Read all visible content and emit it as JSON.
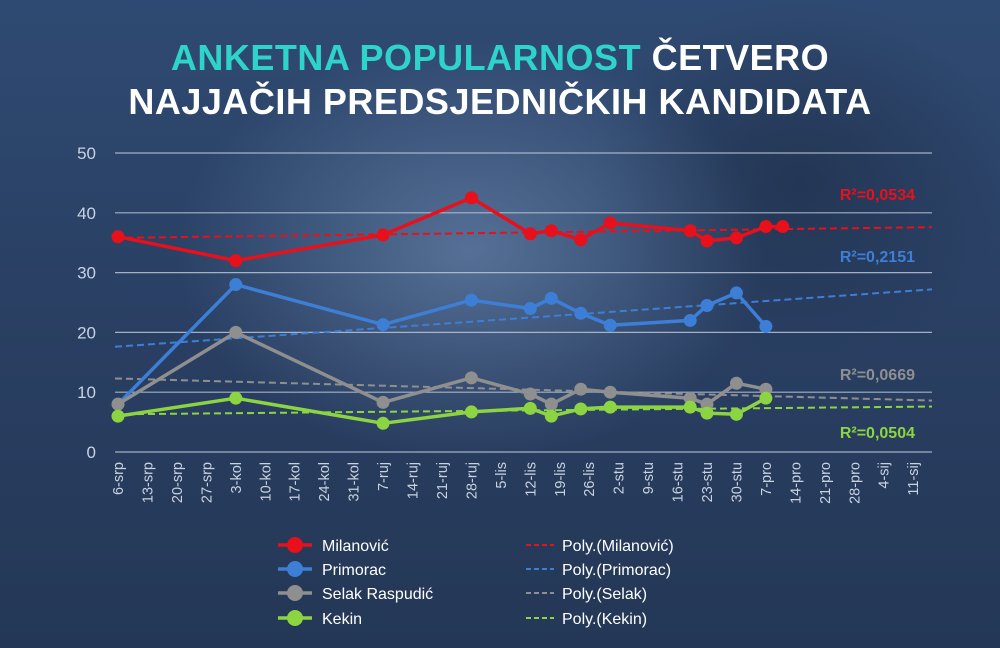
{
  "title": {
    "part1": "ANKETNA POPULARNOST",
    "part2": " ČETVERO",
    "line2": "NAJJAČIH PREDSJEDNIČKIH KANDIDATA"
  },
  "colors": {
    "accent": "#2ed3c9",
    "milanovic": "#e8101a",
    "primorac": "#3d7fd6",
    "selak": "#8f8f8f",
    "kekin": "#8cd442"
  },
  "chart_data": {
    "type": "line",
    "categories": [
      "6-srp",
      "13-srp",
      "20-srp",
      "27-srp",
      "3-kol",
      "10-kol",
      "17-kol",
      "24-kol",
      "31-kol",
      "7-ruj",
      "14-ruj",
      "21-ruj",
      "28-ruj",
      "5-lis",
      "12-lis",
      "19-lis",
      "26-lis",
      "2-stu",
      "9-stu",
      "16-stu",
      "23-stu",
      "30-stu",
      "7-pro",
      "14-pro",
      "21-pro",
      "28-pro",
      "4-sij",
      "11-sij"
    ],
    "x_unit": "days since 6-srp",
    "ylim": [
      0,
      50
    ],
    "yticks": [
      0,
      10,
      20,
      30,
      40,
      50
    ],
    "grid": true,
    "legend": "bottom",
    "series": [
      {
        "name": "Milanović",
        "color": "#e8101a",
        "x": [
          0,
          28,
          63,
          84,
          98,
          103,
          110,
          117,
          136,
          140,
          147,
          154,
          158
        ],
        "values": [
          36,
          32,
          36.3,
          42.5,
          36.5,
          37,
          35.5,
          38.3,
          37,
          35.3,
          35.8,
          37.7,
          37.7
        ]
      },
      {
        "name": "Primorac",
        "color": "#3d7fd6",
        "x": [
          0,
          28,
          63,
          84,
          98,
          103,
          110,
          117,
          136,
          140,
          147,
          154
        ],
        "values": [
          8,
          28,
          21.3,
          25.4,
          24,
          25.7,
          23.2,
          21.2,
          22,
          24.5,
          26.6,
          21
        ]
      },
      {
        "name": "Selak Raspudić",
        "color": "#8f8f8f",
        "x": [
          0,
          28,
          63,
          84,
          98,
          103,
          110,
          117,
          136,
          140,
          147,
          154
        ],
        "values": [
          8,
          20,
          8.3,
          12.4,
          9.7,
          8,
          10.5,
          10,
          9,
          8,
          11.5,
          10.5
        ]
      },
      {
        "name": "Kekin",
        "color": "#8cd442",
        "x": [
          0,
          28,
          63,
          84,
          98,
          103,
          110,
          117,
          136,
          140,
          147,
          154
        ],
        "values": [
          6,
          9,
          4.8,
          6.7,
          7.3,
          6,
          7.2,
          7.5,
          7.5,
          6.5,
          6.3,
          9
        ]
      }
    ],
    "trendlines": [
      {
        "name": "Poly.(Milanović)",
        "color": "#e8101a",
        "values": [
          35.8,
          37.6
        ],
        "r2": "R²=0,0534"
      },
      {
        "name": "Poly.(Primorac)",
        "color": "#3d7fd6",
        "values": [
          17.6,
          27.2
        ],
        "r2": "R²=0,2151"
      },
      {
        "name": "Poly.(Selak)",
        "color": "#8f8f8f",
        "values": [
          12.3,
          8.6
        ],
        "r2": "R²=0,0669"
      },
      {
        "name": "Poly.(Kekin)",
        "color": "#8cd442",
        "values": [
          6.3,
          7.6
        ],
        "r2": "R²=0,0504"
      }
    ]
  }
}
